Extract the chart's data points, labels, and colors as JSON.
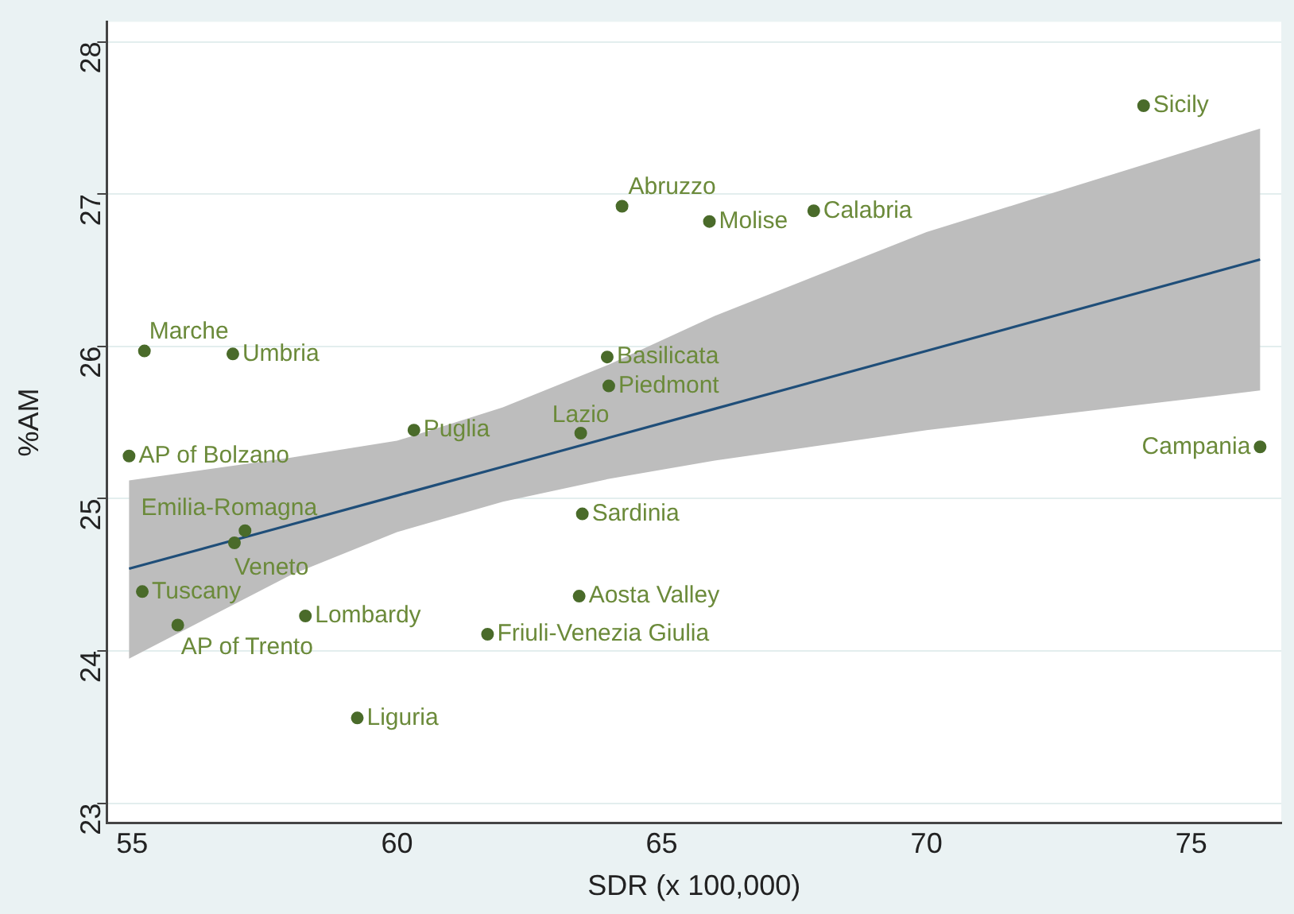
{
  "chart_data": {
    "type": "scatter",
    "xlabel": "SDR (x 100,000)",
    "ylabel": "%AM",
    "xlim": [
      54.52,
      76.7
    ],
    "ylim": [
      22.87,
      28.13
    ],
    "xticks": [
      55,
      60,
      65,
      70,
      75
    ],
    "yticks": [
      23,
      24,
      25,
      26,
      27,
      28
    ],
    "grid": "y",
    "legend": false,
    "marker": "circle",
    "series": [
      {
        "name": "Sicily",
        "color": "#4a6b2a",
        "x": [
          74.1
        ],
        "values": [
          27.58
        ]
      },
      {
        "name": "Abruzzo",
        "color": "#4a6b2a",
        "x": [
          64.25
        ],
        "values": [
          26.92
        ]
      },
      {
        "name": "Molise",
        "color": "#4a6b2a",
        "x": [
          65.9
        ],
        "values": [
          26.82
        ]
      },
      {
        "name": "Calabria",
        "color": "#4a6b2a",
        "x": [
          67.87
        ],
        "values": [
          26.89
        ]
      },
      {
        "name": "Marche",
        "color": "#4a6b2a",
        "x": [
          55.23
        ],
        "values": [
          25.97
        ]
      },
      {
        "name": "Umbria",
        "color": "#4a6b2a",
        "x": [
          56.9
        ],
        "values": [
          25.95
        ]
      },
      {
        "name": "Basilicata",
        "color": "#4a6b2a",
        "x": [
          63.97
        ],
        "values": [
          25.93
        ]
      },
      {
        "name": "Piedmont",
        "color": "#4a6b2a",
        "x": [
          64.0
        ],
        "values": [
          25.74
        ]
      },
      {
        "name": "Puglia",
        "color": "#4a6b2a",
        "x": [
          60.32
        ],
        "values": [
          25.45
        ]
      },
      {
        "name": "Lazio",
        "color": "#4a6b2a",
        "x": [
          63.47
        ],
        "values": [
          25.43
        ]
      },
      {
        "name": "AP of Bolzano",
        "color": "#4a6b2a",
        "x": [
          54.94
        ],
        "values": [
          25.28
        ]
      },
      {
        "name": "Campania",
        "color": "#4a6b2a",
        "x": [
          76.3
        ],
        "values": [
          25.34
        ]
      },
      {
        "name": "Emilia-Romagna",
        "color": "#4a6b2a",
        "x": [
          57.13
        ],
        "values": [
          24.79
        ]
      },
      {
        "name": "Sardinia",
        "color": "#4a6b2a",
        "x": [
          63.5
        ],
        "values": [
          24.9
        ]
      },
      {
        "name": "Veneto",
        "color": "#4a6b2a",
        "x": [
          56.93
        ],
        "values": [
          24.71
        ]
      },
      {
        "name": "Tuscany",
        "color": "#4a6b2a",
        "x": [
          55.19
        ],
        "values": [
          24.39
        ]
      },
      {
        "name": "Aosta Valley",
        "color": "#4a6b2a",
        "x": [
          63.44
        ],
        "values": [
          24.36
        ]
      },
      {
        "name": "Lombardy",
        "color": "#4a6b2a",
        "x": [
          58.27
        ],
        "values": [
          24.23
        ]
      },
      {
        "name": "AP of Trento",
        "color": "#4a6b2a",
        "x": [
          55.86
        ],
        "values": [
          24.17
        ]
      },
      {
        "name": "Friuli-Venezia Giulia",
        "color": "#4a6b2a",
        "x": [
          61.71
        ],
        "values": [
          24.11
        ]
      },
      {
        "name": "Liguria",
        "color": "#4a6b2a",
        "x": [
          59.25
        ],
        "values": [
          23.56
        ]
      },
      {
        "type": "line",
        "color": "#1f4e79",
        "marker": "none",
        "x": [
          54.94,
          58,
          60,
          62,
          64,
          66,
          70,
          76.3
        ],
        "values": [
          24.54,
          24.83,
          25.02,
          25.21,
          25.4,
          25.59,
          25.97,
          26.57
        ],
        "lower": [
          23.95,
          24.5,
          24.78,
          24.98,
          25.13,
          25.25,
          25.45,
          25.71
        ],
        "upper": [
          25.12,
          25.27,
          25.38,
          25.6,
          25.88,
          26.2,
          26.75,
          27.43
        ]
      }
    ]
  }
}
